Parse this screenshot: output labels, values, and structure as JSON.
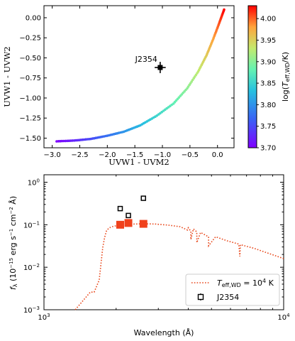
{
  "chart_data": [
    {
      "type": "scatter",
      "xlabel": "UVW1 - UVM2",
      "ylabel": "UVW1 - UVW2",
      "xlim": [
        -3.15,
        0.3
      ],
      "ylim": [
        -1.62,
        0.15
      ],
      "xticks": [
        "-3.0",
        "-2.5",
        "-2.0",
        "-1.5",
        "-1.0",
        "-0.5",
        "0.0"
      ],
      "xtick_values": [
        -3.0,
        -2.5,
        -2.0,
        -1.5,
        -1.0,
        -0.5,
        0.0
      ],
      "yticks": [
        "0.00",
        "-0.25",
        "-0.50",
        "-0.75",
        "-1.00",
        "-1.25",
        "-1.50"
      ],
      "ytick_values": [
        0.0,
        -0.25,
        -0.5,
        -0.75,
        -1.0,
        -1.25,
        -1.5
      ],
      "model_track": {
        "colormap": "rainbow",
        "logT_range": [
          3.7,
          4.03
        ],
        "points": [
          [
            -2.92,
            -1.54
          ],
          [
            -2.6,
            -1.53
          ],
          [
            -2.3,
            -1.51
          ],
          [
            -2.0,
            -1.47
          ],
          [
            -1.7,
            -1.42
          ],
          [
            -1.4,
            -1.34
          ],
          [
            -1.1,
            -1.22
          ],
          [
            -0.8,
            -1.07
          ],
          [
            -0.55,
            -0.88
          ],
          [
            -0.35,
            -0.67
          ],
          [
            -0.2,
            -0.47
          ],
          [
            -0.08,
            -0.27
          ],
          [
            0.03,
            -0.07
          ],
          [
            0.12,
            0.1
          ]
        ]
      },
      "object": {
        "name": "J2354",
        "x": -1.04,
        "y": -0.62,
        "xerr": 0.1,
        "yerr": 0.07
      },
      "colorbar": {
        "label": "log(T_eff,WD/K)",
        "ticks": [
          "4.00",
          "3.95",
          "3.90",
          "3.85",
          "3.80",
          "3.75",
          "3.70"
        ],
        "tick_values": [
          4.0,
          3.95,
          3.9,
          3.85,
          3.8,
          3.75,
          3.7
        ],
        "range": [
          3.7,
          4.03
        ]
      }
    },
    {
      "type": "line",
      "xlabel": "Wavelength (Å)",
      "ylabel": "f_λ (10^-15 erg s^-1 cm^-2 Å)",
      "xscale": "log",
      "yscale": "log",
      "xlim": [
        1000,
        10000
      ],
      "ylim": [
        0.001,
        1.5
      ],
      "xticks": [
        "10^3",
        "10^4"
      ],
      "yticks": [
        "10^-3",
        "10^-2",
        "10^-1",
        "10^0"
      ],
      "series": [
        {
          "name": "T_eff,WD = 10^4 K",
          "style": "dotted",
          "color": "#e8491d",
          "x": [
            1350,
            1500,
            1560,
            1620,
            1700,
            1760,
            1790,
            1820,
            1860,
            1900,
            1950,
            2050,
            2200,
            2400,
            2600,
            2900,
            3300,
            3700,
            3970,
            4000,
            4100,
            4102,
            4200,
            4340,
            4345,
            4500,
            4860,
            4865,
            5200,
            5800,
            6500,
            6563,
            6600,
            7500,
            8500,
            10000
          ],
          "y": [
            0.001,
            0.002,
            0.0026,
            0.0026,
            0.005,
            0.03,
            0.05,
            0.07,
            0.082,
            0.088,
            0.092,
            0.097,
            0.101,
            0.104,
            0.105,
            0.104,
            0.098,
            0.09,
            0.075,
            0.085,
            0.07,
            0.045,
            0.08,
            0.068,
            0.038,
            0.066,
            0.052,
            0.032,
            0.052,
            0.042,
            0.035,
            0.018,
            0.034,
            0.028,
            0.022,
            0.016
          ]
        }
      ],
      "filled_squares": {
        "color": "#f0411c",
        "x": [
          2080,
          2250,
          2600
        ],
        "y": [
          0.1,
          0.11,
          0.105
        ]
      },
      "object": {
        "name": "J2354",
        "x": [
          2080,
          2250,
          2600
        ],
        "y": [
          0.24,
          0.165,
          0.42
        ]
      },
      "legend": {
        "placement": "lower right",
        "entries": [
          "T_eff,WD = 10^4 K",
          "J2354"
        ]
      }
    }
  ]
}
